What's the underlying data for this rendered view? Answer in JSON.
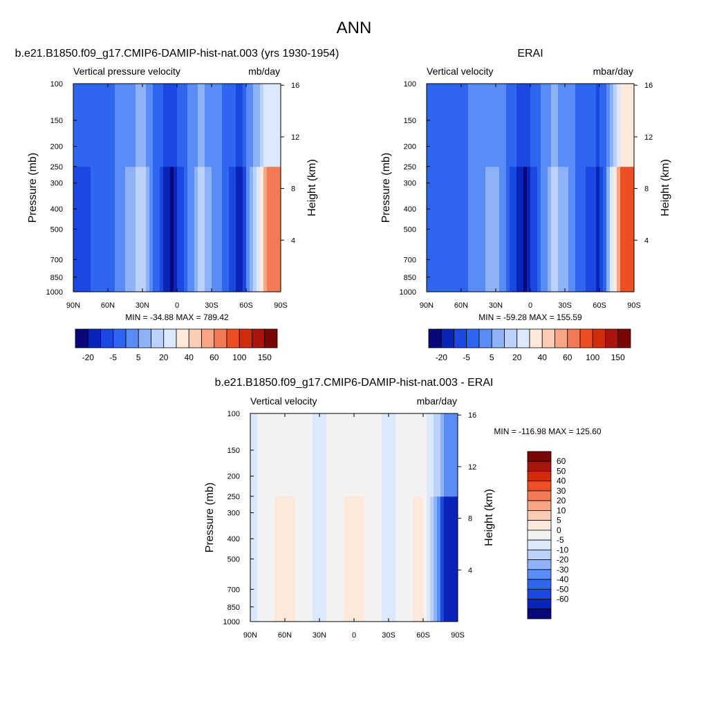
{
  "page_title": "ANN",
  "palettes": {
    "abs": [
      "#08087a",
      "#0a24b8",
      "#1a48e0",
      "#2e66f0",
      "#5a8cf6",
      "#8eb2f8",
      "#bcd2fa",
      "#dce9fc",
      "#fde8dc",
      "#fbcdb4",
      "#f7a585",
      "#f37a55",
      "#ec4f24",
      "#d22c0c",
      "#a8150a",
      "#7a0606"
    ],
    "diff": [
      "#08087a",
      "#0a24b8",
      "#1a48e0",
      "#2e66f0",
      "#5a8cf6",
      "#8eb2f8",
      "#bcd2fa",
      "#dce9fc",
      "#f2f2f2",
      "#fde8dc",
      "#fbcdb4",
      "#f7a585",
      "#f37a55",
      "#ec4f24",
      "#d22c0c",
      "#a8150a",
      "#7a0606"
    ]
  },
  "chart_data": [
    {
      "type": "heatmap",
      "id": "model",
      "title": "b.e21.B1850.f09_g17.CMIP6-DAMIP-hist-nat.003 (yrs 1930-1954)",
      "left_label": "Vertical pressure velocity",
      "right_label": "mb/day",
      "ylabel": "Pressure (mb)",
      "y2label": "Height (km)",
      "x_ticks": [
        "90N",
        "60N",
        "30N",
        "0",
        "30S",
        "60S",
        "90S"
      ],
      "x_values": [
        90,
        60,
        30,
        0,
        -30,
        -60,
        -90
      ],
      "y_ticks": [
        "100",
        "150",
        "200",
        "250",
        "300",
        "400",
        "500",
        "700",
        "850",
        "1000"
      ],
      "y_values": [
        100,
        150,
        200,
        250,
        300,
        400,
        500,
        700,
        850,
        1000
      ],
      "y_log_scale": true,
      "y2_ticks": [
        "16",
        "12",
        "8",
        "4"
      ],
      "y2_values": [
        16,
        12,
        8,
        4
      ],
      "xlim": [
        90,
        -90
      ],
      "ylim": [
        1000,
        100
      ],
      "min": -34.88,
      "max": 789.42,
      "stats_text": "MIN = -34.88  MAX = 789.42",
      "colorbar_labels": [
        "-20",
        "-5",
        "5",
        "20",
        "40",
        "60",
        "100",
        "150"
      ],
      "colorbar_orientation": "horizontal",
      "field": [
        {
          "lat": 90,
          "level": 2
        },
        {
          "lat": 60,
          "level": 3
        },
        {
          "lat": 30,
          "level": 6
        },
        {
          "lat": 5,
          "level": 0
        },
        {
          "lat": -20,
          "level": 6
        },
        {
          "lat": -55,
          "level": 1
        },
        {
          "lat": -80,
          "level": 11
        }
      ]
    },
    {
      "type": "heatmap",
      "id": "obs",
      "title": "ERAI",
      "left_label": "Vertical velocity",
      "right_label": "mbar/day",
      "ylabel": "Pressure (mb)",
      "y2label": "Height (km)",
      "x_ticks": [
        "90N",
        "60N",
        "30N",
        "0",
        "30S",
        "60S",
        "90S"
      ],
      "x_values": [
        90,
        60,
        30,
        0,
        -30,
        -60,
        -90
      ],
      "y_ticks": [
        "100",
        "150",
        "200",
        "250",
        "300",
        "400",
        "500",
        "700",
        "850",
        "1000"
      ],
      "y_values": [
        100,
        150,
        200,
        250,
        300,
        400,
        500,
        700,
        850,
        1000
      ],
      "y_log_scale": true,
      "y2_ticks": [
        "16",
        "12",
        "8",
        "4"
      ],
      "y2_values": [
        16,
        12,
        8,
        4
      ],
      "xlim": [
        90,
        -90
      ],
      "ylim": [
        1000,
        100
      ],
      "min": -59.28,
      "max": 155.59,
      "stats_text": "MIN = -59.28  MAX = 155.59",
      "colorbar_labels": [
        "-20",
        "-5",
        "5",
        "20",
        "40",
        "60",
        "100",
        "150"
      ],
      "colorbar_orientation": "horizontal",
      "field": [
        {
          "lat": 90,
          "level": 3
        },
        {
          "lat": 60,
          "level": 3
        },
        {
          "lat": 30,
          "level": 5
        },
        {
          "lat": 5,
          "level": 0
        },
        {
          "lat": -20,
          "level": 6
        },
        {
          "lat": -60,
          "level": 1
        },
        {
          "lat": -80,
          "level": 12
        }
      ]
    },
    {
      "type": "heatmap",
      "id": "diff",
      "title": "b.e21.B1850.f09_g17.CMIP6-DAMIP-hist-nat.003 - ERAI",
      "left_label": "Vertical velocity",
      "right_label": "mbar/day",
      "ylabel": "Pressure (mb)",
      "y2label": "Height (km)",
      "x_ticks": [
        "90N",
        "60N",
        "30N",
        "0",
        "30S",
        "60S",
        "90S"
      ],
      "x_values": [
        90,
        60,
        30,
        0,
        -30,
        -60,
        -90
      ],
      "y_ticks": [
        "100",
        "150",
        "200",
        "250",
        "300",
        "400",
        "500",
        "700",
        "850",
        "1000"
      ],
      "y_values": [
        100,
        150,
        200,
        250,
        300,
        400,
        500,
        700,
        850,
        1000
      ],
      "y_log_scale": true,
      "y2_ticks": [
        "16",
        "12",
        "8",
        "4"
      ],
      "y2_values": [
        16,
        12,
        8,
        4
      ],
      "xlim": [
        90,
        -90
      ],
      "ylim": [
        1000,
        100
      ],
      "min": -116.98,
      "max": 125.6,
      "stats_text": "MIN = -116.98  MAX = 125.60",
      "colorbar_labels": [
        "60",
        "50",
        "40",
        "30",
        "20",
        "10",
        "5",
        "0",
        "-5",
        "-10",
        "-20",
        "-30",
        "-40",
        "-50",
        "-60"
      ],
      "colorbar_orientation": "vertical",
      "field": [
        {
          "lat": 90,
          "level": 7
        },
        {
          "lat": 60,
          "level": 9
        },
        {
          "lat": 30,
          "level": 7
        },
        {
          "lat": 0,
          "level": 9
        },
        {
          "lat": -30,
          "level": 7
        },
        {
          "lat": -60,
          "level": 9
        },
        {
          "lat": -80,
          "level": 1
        }
      ]
    }
  ]
}
